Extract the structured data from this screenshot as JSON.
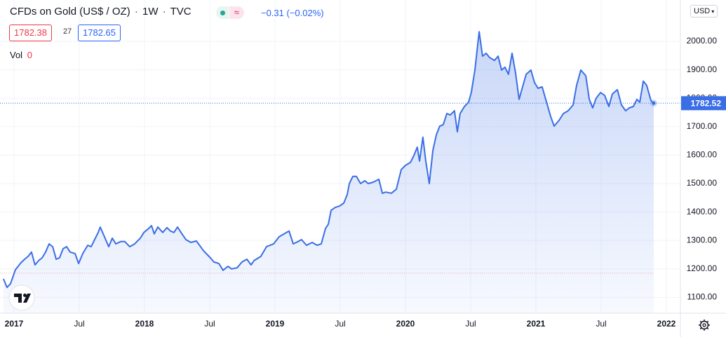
{
  "chart_data": {
    "type": "area",
    "title": "CFDs on Gold (US$ / OZ)",
    "interval": "1W",
    "exchange": "TVC",
    "change": "−0.31 (−0.02%)",
    "bid": "1782.38",
    "spread": "27",
    "ask": "1782.65",
    "volume_label": "Vol",
    "volume": "0",
    "currency": "USD",
    "color": "#3a6ee6",
    "grid": true,
    "prev_close_line": 1185,
    "xlim": [
      2016.8925,
      2022.1075
    ],
    "xticks": [
      2017,
      {
        "value": 2017.5,
        "label": "Jul"
      },
      2018,
      {
        "value": 2018.5,
        "label": "Jul"
      },
      2019,
      {
        "value": 2019.5,
        "label": "Jul"
      },
      2020,
      {
        "value": 2020.5,
        "label": "Jul"
      },
      2021,
      {
        "value": 2021.5,
        "label": "Jul"
      },
      2022
    ],
    "ylim": [
      1044.3,
      2145.3
    ],
    "yticks": [
      {
        "value": 1100,
        "label": "1100.00"
      },
      {
        "value": 1200,
        "label": "1200.00"
      },
      {
        "value": 1300,
        "label": "1300.00"
      },
      {
        "value": 1400,
        "label": "1400.00"
      },
      {
        "value": 1500,
        "label": "1500.00"
      },
      {
        "value": 1600,
        "label": "1600.00"
      },
      {
        "value": 1700,
        "label": "1700.00"
      },
      {
        "value": 1800,
        "label": "1800.00"
      },
      {
        "value": 1900,
        "label": "1900.00"
      },
      {
        "value": 2000,
        "label": "2000.00"
      }
    ],
    "x": [
      2016.919,
      2016.946,
      2016.973,
      2017.011,
      2017.054,
      2017.081,
      2017.108,
      2017.134,
      2017.161,
      2017.188,
      2017.215,
      2017.242,
      2017.269,
      2017.296,
      2017.323,
      2017.349,
      2017.376,
      2017.403,
      2017.43,
      2017.468,
      2017.495,
      2017.527,
      2017.565,
      2017.591,
      2017.618,
      2017.645,
      2017.661,
      2017.688,
      2017.726,
      2017.753,
      2017.78,
      2017.817,
      2017.849,
      2017.887,
      2017.925,
      2017.968,
      2017.995,
      2018.032,
      2018.054,
      2018.075,
      2018.102,
      2018.14,
      2018.172,
      2018.199,
      2018.226,
      2018.253,
      2018.28,
      2018.317,
      2018.355,
      2018.398,
      2018.452,
      2018.505,
      2018.532,
      2018.57,
      2018.602,
      2018.64,
      2018.667,
      2018.71,
      2018.747,
      2018.785,
      2018.817,
      2018.839,
      2018.892,
      2018.935,
      2018.989,
      2019.032,
      2019.07,
      2019.108,
      2019.14,
      2019.177,
      2019.204,
      2019.242,
      2019.285,
      2019.323,
      2019.355,
      2019.387,
      2019.409,
      2019.43,
      2019.462,
      2019.495,
      2019.527,
      2019.554,
      2019.57,
      2019.597,
      2019.624,
      2019.656,
      2019.688,
      2019.715,
      2019.753,
      2019.796,
      2019.823,
      2019.849,
      2019.892,
      2019.93,
      2019.968,
      2020.0,
      2020.038,
      2020.065,
      2020.091,
      2020.108,
      2020.134,
      2020.156,
      2020.183,
      2020.21,
      2020.237,
      2020.263,
      2020.29,
      2020.317,
      2020.344,
      2020.376,
      2020.398,
      2020.419,
      2020.452,
      2020.484,
      2020.505,
      2020.532,
      2020.565,
      2020.591,
      2020.618,
      2020.645,
      2020.683,
      2020.71,
      2020.737,
      2020.763,
      2020.79,
      2020.817,
      2020.844,
      2020.871,
      2020.898,
      2020.925,
      2020.962,
      2020.989,
      2021.016,
      2021.048,
      2021.075,
      2021.113,
      2021.14,
      2021.177,
      2021.21,
      2021.247,
      2021.285,
      2021.312,
      2021.344,
      2021.382,
      2021.409,
      2021.435,
      2021.462,
      2021.495,
      2021.527,
      2021.559,
      2021.586,
      2021.624,
      2021.656,
      2021.688,
      2021.715,
      2021.747,
      2021.774,
      2021.796,
      2021.823,
      2021.849,
      2021.882,
      2021.903
    ],
    "values": [
      1165,
      1135,
      1148,
      1197,
      1222,
      1234,
      1244,
      1259,
      1214,
      1229,
      1239,
      1259,
      1288,
      1278,
      1234,
      1239,
      1271,
      1278,
      1259,
      1254,
      1219,
      1254,
      1283,
      1278,
      1303,
      1328,
      1347,
      1318,
      1278,
      1308,
      1288,
      1296,
      1296,
      1278,
      1288,
      1308,
      1328,
      1342,
      1352,
      1323,
      1347,
      1328,
      1345,
      1333,
      1328,
      1347,
      1328,
      1303,
      1293,
      1298,
      1264,
      1239,
      1224,
      1219,
      1195,
      1209,
      1200,
      1204,
      1224,
      1234,
      1214,
      1229,
      1244,
      1278,
      1288,
      1313,
      1323,
      1333,
      1288,
      1296,
      1303,
      1283,
      1293,
      1283,
      1288,
      1342,
      1357,
      1406,
      1416,
      1421,
      1431,
      1461,
      1500,
      1525,
      1525,
      1500,
      1510,
      1500,
      1505,
      1515,
      1466,
      1470,
      1466,
      1480,
      1549,
      1564,
      1574,
      1599,
      1628,
      1579,
      1663,
      1579,
      1500,
      1616,
      1672,
      1702,
      1707,
      1746,
      1741,
      1756,
      1682,
      1746,
      1771,
      1786,
      1820,
      1899,
      2034,
      1948,
      1958,
      1943,
      1933,
      1948,
      1899,
      1909,
      1884,
      1958,
      1889,
      1796,
      1840,
      1884,
      1899,
      1855,
      1835,
      1840,
      1796,
      1736,
      1702,
      1722,
      1746,
      1756,
      1776,
      1845,
      1899,
      1879,
      1796,
      1766,
      1800,
      1820,
      1810,
      1771,
      1815,
      1830,
      1776,
      1756,
      1766,
      1771,
      1796,
      1786,
      1860,
      1845,
      1791,
      1782.52
    ]
  }
}
